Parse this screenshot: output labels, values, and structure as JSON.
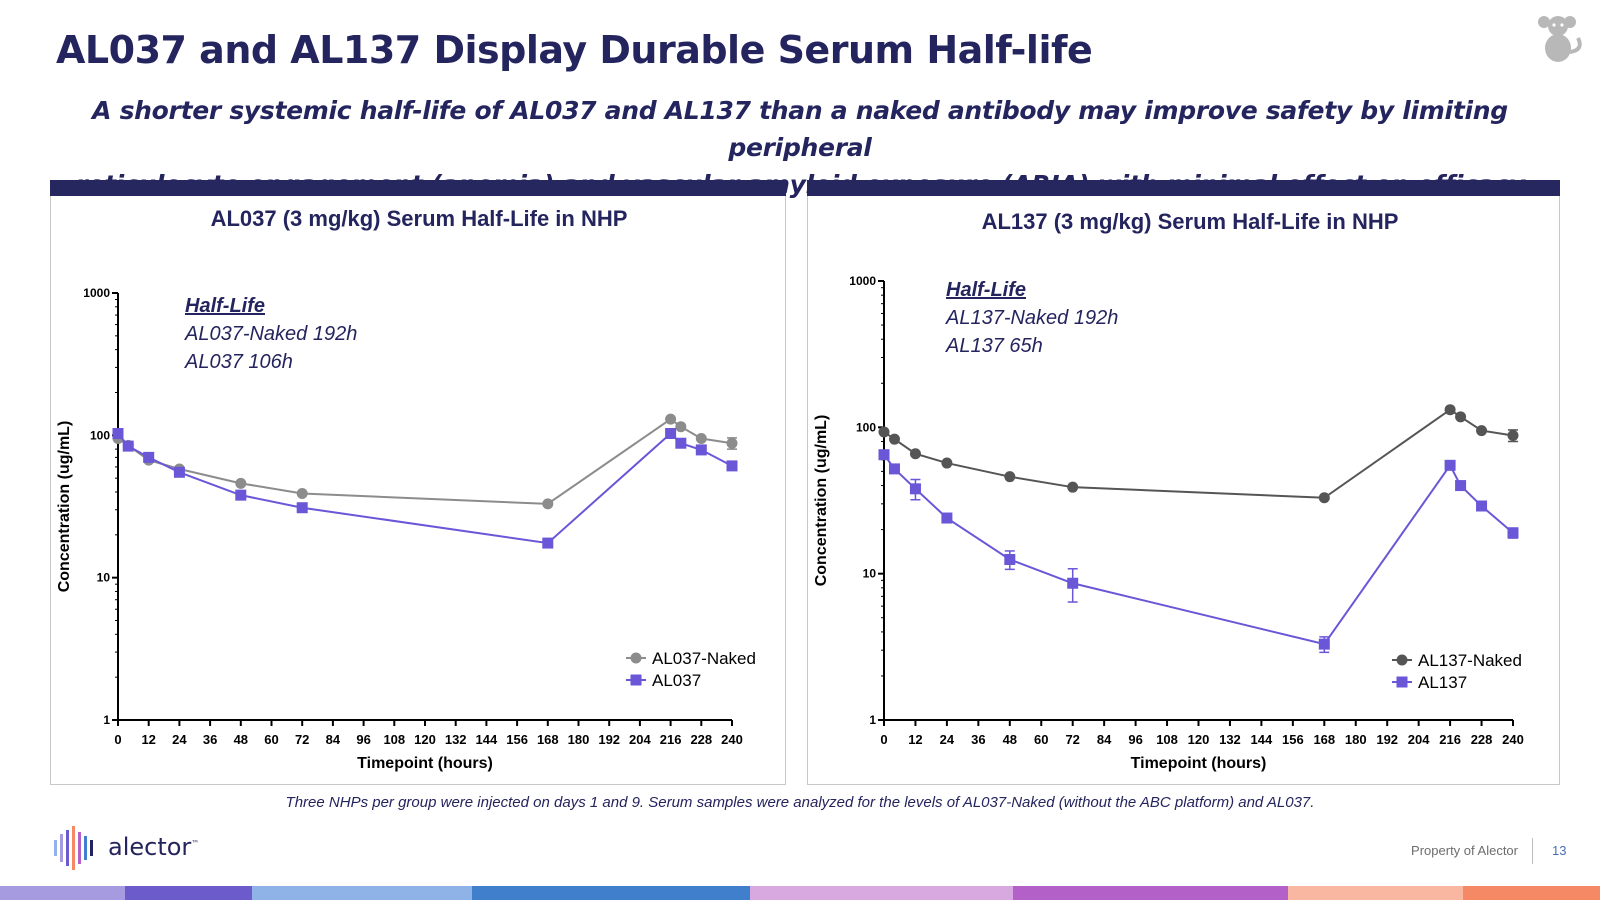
{
  "header": {
    "title": "AL037 and AL137 Display Durable Serum Half-life",
    "subtitle_line1": "A shorter systemic half-life of AL037 and AL137 than a naked antibody may improve safety by limiting peripheral",
    "subtitle_line2": "reticulocyte engagement (anemia) and vascular amyloid exposure (ARIA) with minimal effect on efficacy",
    "corner_icon": "monkey-icon"
  },
  "colors": {
    "navy": "#24245e",
    "panel_bar": "#26275e",
    "naked_series": "#6f6f6f",
    "abc_series": "#6a57d8"
  },
  "chart_data": [
    {
      "type": "line",
      "title": "AL037 (3 mg/kg) Serum Half-Life in NHP",
      "xlabel": "Timepoint (hours)",
      "ylabel": "Concentration (ug/mL)",
      "yscale": "log",
      "ylim": [
        1,
        1000
      ],
      "xlim": [
        0,
        240
      ],
      "xticks": [
        0,
        12,
        24,
        36,
        48,
        60,
        72,
        84,
        96,
        108,
        120,
        132,
        144,
        156,
        168,
        180,
        192,
        204,
        216,
        228,
        240
      ],
      "yticks": [
        1,
        10,
        100,
        1000
      ],
      "ytick_labels": [
        "1",
        "10",
        "100",
        "1000"
      ],
      "grid": false,
      "legend_position": "bottom-right",
      "annotation": {
        "heading": "Half-Life",
        "lines": [
          "AL037-Naked 192h",
          "AL037 106h"
        ]
      },
      "series": [
        {
          "name": "AL037-Naked",
          "marker": "circle",
          "color": "#8c8c8c",
          "x": [
            0,
            4,
            12,
            24,
            48,
            72,
            168,
            216,
            220,
            228,
            240
          ],
          "y": [
            95,
            85,
            67,
            58,
            46,
            39,
            33,
            130,
            115,
            95,
            88
          ],
          "err": [
            0,
            0,
            0,
            0,
            0,
            0,
            0,
            0,
            0,
            0,
            8
          ]
        },
        {
          "name": "AL037",
          "marker": "square",
          "color": "#6a57d8",
          "x": [
            0,
            4,
            12,
            24,
            48,
            72,
            168,
            216,
            220,
            228,
            240
          ],
          "y": [
            103,
            84,
            70,
            55,
            38,
            31,
            17.5,
            103,
            88,
            79,
            61
          ],
          "err": [
            0,
            0,
            0,
            0,
            0,
            0,
            0,
            0,
            0,
            0,
            0
          ]
        }
      ]
    },
    {
      "type": "line",
      "title": "AL137 (3 mg/kg) Serum Half-Life in NHP",
      "xlabel": "Timepoint (hours)",
      "ylabel": "Concentration (ug/mL)",
      "yscale": "log",
      "ylim": [
        1,
        1000
      ],
      "xlim": [
        0,
        240
      ],
      "xticks": [
        0,
        12,
        24,
        36,
        48,
        60,
        72,
        84,
        96,
        108,
        120,
        132,
        144,
        156,
        168,
        180,
        192,
        204,
        216,
        228,
        240
      ],
      "yticks": [
        1,
        10,
        100,
        1000
      ],
      "ytick_labels": [
        "1",
        "10",
        "100",
        "1000"
      ],
      "grid": false,
      "legend_position": "bottom-right",
      "annotation": {
        "heading": "Half-Life",
        "lines": [
          "AL137-Naked 192h",
          "AL137 65h"
        ]
      },
      "series": [
        {
          "name": "AL137-Naked",
          "marker": "circle",
          "color": "#555555",
          "x": [
            0,
            4,
            12,
            24,
            48,
            72,
            168,
            216,
            220,
            228,
            240
          ],
          "y": [
            93,
            83,
            66,
            57,
            46,
            39,
            33,
            132,
            118,
            95,
            88
          ],
          "err": [
            0,
            0,
            0,
            0,
            0,
            0,
            0,
            0,
            0,
            0,
            8
          ]
        },
        {
          "name": "AL137",
          "marker": "square",
          "color": "#6a57d8",
          "x": [
            0,
            4,
            12,
            24,
            48,
            72,
            168,
            216,
            220,
            228,
            240
          ],
          "y": [
            65,
            52,
            38,
            24,
            12.5,
            8.6,
            3.3,
            55,
            40,
            29,
            19
          ],
          "err": [
            0,
            0,
            6,
            0,
            1.8,
            2.2,
            0.4,
            0,
            0,
            0,
            1.5
          ]
        }
      ]
    }
  ],
  "footer": {
    "note": "Three NHPs per group were injected on days 1 and 9. Serum samples were analyzed for the levels of AL037-Naked (without the ABC platform) and AL037.",
    "logo_text": "alector",
    "logo_tm": "™",
    "property": "Property of Alector",
    "page_number": "13",
    "strip_colors": [
      "#a69be0",
      "#6c5ccb",
      "#8fb3e6",
      "#3f7fcc",
      "#d7a9e0",
      "#b460c9",
      "#f9b7a2",
      "#f58966"
    ]
  }
}
